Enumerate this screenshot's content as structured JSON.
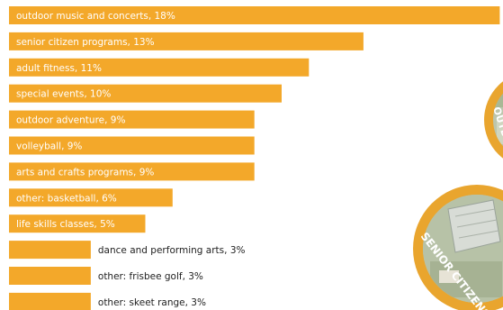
{
  "chart_data": {
    "type": "bar",
    "orientation": "horizontal",
    "bar_color": "#F3A82A",
    "categories": [
      "outdoor music and concerts",
      "senior citizen programs",
      "adult fitness",
      "special events",
      "outdoor adventure",
      "volleyball",
      "arts and crafts programs",
      "other: basketball",
      "life skills classes",
      "dance and performing arts",
      "other: frisbee golf",
      "other: skeet range"
    ],
    "values": [
      18,
      13,
      11,
      10,
      9,
      9,
      9,
      6,
      5,
      3,
      3,
      3
    ],
    "labels": [
      "outdoor music and concerts, 18%",
      "senior citizen programs, 13%",
      "adult fitness, 11%",
      "special events, 10%",
      "outdoor adventure, 9%",
      "volleyball, 9%",
      "arts and crafts programs, 9%",
      "other: basketball, 6%",
      "life skills classes, 5%",
      "dance and performing arts, 3%",
      "other: frisbee golf, 3%",
      "other: skeet range, 3%"
    ],
    "unit": "%"
  },
  "decoration": {
    "medallion_top_text": "OUTD",
    "medallion_bottom_text": "SENIOR CITIZENS",
    "ring_color": "#E9A52E",
    "tile_color": "#bcc6ad"
  }
}
